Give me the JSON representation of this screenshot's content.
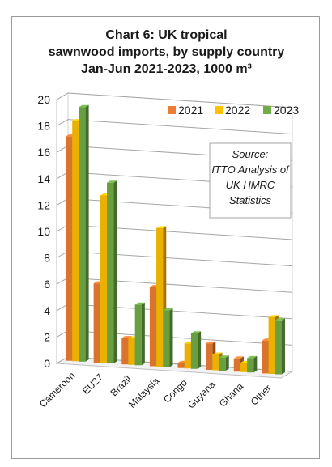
{
  "chart_data": {
    "type": "bar",
    "title_lines": [
      "Chart 6: UK tropical",
      "sawnwood imports, by supply country",
      "Jan-Jun 2021-2023, 1000 m³"
    ],
    "categories": [
      "Cameroon",
      "EU27",
      "Brazil",
      "Malaysia",
      "Congo",
      "Guyana",
      "Ghana",
      "Other"
    ],
    "series": [
      {
        "name": "2021",
        "values": [
          17.0,
          6.0,
          2.0,
          6.0,
          0.4,
          2.0,
          1.0,
          2.5
        ],
        "color": "#ED7D31"
      },
      {
        "name": "2022",
        "values": [
          18.2,
          12.7,
          2.0,
          10.5,
          1.9,
          1.2,
          0.7,
          4.3
        ],
        "color": "#FFC000"
      },
      {
        "name": "2023",
        "values": [
          19.3,
          13.7,
          4.6,
          4.3,
          2.7,
          1.0,
          1.1,
          4.1
        ],
        "color": "#70AD47"
      }
    ],
    "y_ticks": [
      "0",
      "2",
      "4",
      "6",
      "8",
      "10",
      "12",
      "14",
      "16",
      "18",
      "20"
    ],
    "ylim": [
      0,
      20
    ],
    "grid": true,
    "legend_position": "top-right",
    "annotation_lines": [
      "Source:",
      "ITTO Analysis of",
      "UK HMRC",
      "Statistics"
    ]
  }
}
